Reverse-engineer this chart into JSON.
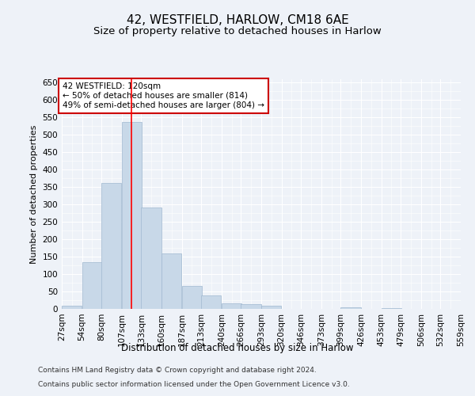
{
  "title_line1": "42, WESTFIELD, HARLOW, CM18 6AE",
  "title_line2": "Size of property relative to detached houses in Harlow",
  "xlabel": "Distribution of detached houses by size in Harlow",
  "ylabel": "Number of detached properties",
  "bar_values": [
    10,
    135,
    362,
    537,
    291,
    159,
    65,
    38,
    17,
    13,
    8,
    0,
    0,
    0,
    5,
    0,
    3,
    0,
    0,
    0
  ],
  "bin_edges": [
    27,
    54,
    80,
    107,
    133,
    160,
    187,
    213,
    240,
    266,
    293,
    320,
    346,
    373,
    399,
    426,
    453,
    479,
    506,
    532,
    559
  ],
  "tick_labels": [
    "27sqm",
    "54sqm",
    "80sqm",
    "107sqm",
    "133sqm",
    "160sqm",
    "187sqm",
    "213sqm",
    "240sqm",
    "266sqm",
    "293sqm",
    "320sqm",
    "346sqm",
    "373sqm",
    "399sqm",
    "426sqm",
    "453sqm",
    "479sqm",
    "506sqm",
    "532sqm",
    "559sqm"
  ],
  "bar_color": "#c8d8e8",
  "bar_edge_color": "#a0b8d0",
  "red_line_x": 120,
  "annotation_text": "42 WESTFIELD: 120sqm\n← 50% of detached houses are smaller (814)\n49% of semi-detached houses are larger (804) →",
  "annotation_box_color": "#ffffff",
  "annotation_box_edge": "#cc0000",
  "ylim": [
    0,
    660
  ],
  "yticks": [
    0,
    50,
    100,
    150,
    200,
    250,
    300,
    350,
    400,
    450,
    500,
    550,
    600,
    650
  ],
  "footnote1": "Contains HM Land Registry data © Crown copyright and database right 2024.",
  "footnote2": "Contains public sector information licensed under the Open Government Licence v3.0.",
  "background_color": "#eef2f8",
  "grid_color": "#ffffff",
  "title1_fontsize": 11,
  "title2_fontsize": 9.5,
  "axis_label_fontsize": 8.5,
  "ylabel_fontsize": 8,
  "tick_fontsize": 7.5,
  "annotation_fontsize": 7.5,
  "footnote_fontsize": 6.5
}
